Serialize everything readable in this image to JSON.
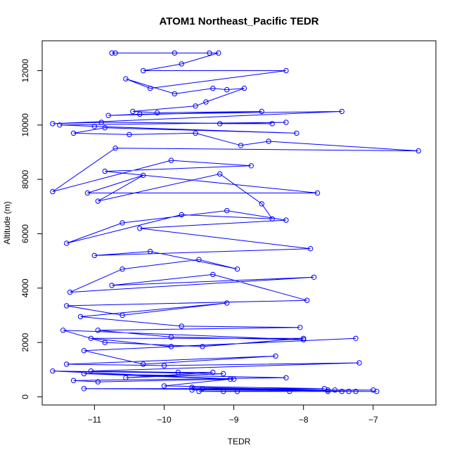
{
  "chart_data": {
    "type": "line",
    "title": "ATOM1 Northeast_Pacific TEDR",
    "xlabel": "TEDR",
    "ylabel": "Altitude (m)",
    "xlim": [
      -11.75,
      -6.1
    ],
    "ylim": [
      -300,
      13100
    ],
    "xticks": [
      -11,
      -10,
      -9,
      -8,
      -7
    ],
    "yticks": [
      0,
      2000,
      4000,
      6000,
      8000,
      10000,
      12000
    ],
    "grid": false,
    "legend": "none",
    "color": "#0000ff",
    "series": [
      {
        "x": [
          -10.75,
          -10.7,
          -9.85,
          -9.35,
          -9.22,
          -9.75,
          -10.3,
          -8.25,
          -10.2,
          -10.55,
          -9.85,
          -9.3,
          -9.1,
          -8.85,
          -9.4,
          -9.55,
          -10.45,
          -10.1,
          -8.6,
          -10.8,
          -10.35,
          -7.45,
          -11.6,
          -10.9,
          -8.45,
          -9.2,
          -8.25,
          -11.5,
          -11.0,
          -8.1,
          -10.85,
          -11.3,
          -10.5,
          -9.55,
          -8.9,
          -8.5,
          -6.35,
          -10.7,
          -11.6,
          -9.9,
          -8.75,
          -10.85,
          -7.8,
          -11.1,
          -10.3,
          -10.95,
          -9.2,
          -8.6,
          -8.45,
          -9.75,
          -11.4,
          -10.6,
          -9.1,
          -8.25,
          -10.35,
          -7.9,
          -11.0,
          -10.2,
          -8.95,
          -9.5,
          -10.6,
          -11.35,
          -7.85,
          -10.75,
          -9.3,
          -7.95,
          -11.4,
          -10.6,
          -9.1,
          -11.2,
          -9.75,
          -8.05,
          -10.95,
          -9.9,
          -8.0,
          -11.45,
          -10.85,
          -9.45,
          -8.0,
          -11.05,
          -9.9,
          -7.25,
          -11.15,
          -10.3,
          -8.4,
          -11.4,
          -10.0,
          -7.2,
          -11.05,
          -9.8,
          -9.3,
          -10.55,
          -9.15,
          -11.6,
          -9.0,
          -11.15,
          -8.25,
          -11.3,
          -10.95,
          -9.05,
          -10.0,
          -7.7,
          -11.15,
          -7.65,
          -9.6,
          -7.35,
          -9.45,
          -7.55,
          -9.6,
          -7.0,
          -9.5,
          -7.65,
          -9.15,
          -7.25,
          -8.95,
          -7.45,
          -8.2,
          -6.95
        ],
        "y": [
          12650,
          12650,
          12650,
          12650,
          12650,
          12250,
          12000,
          12000,
          11350,
          11700,
          11150,
          11350,
          11300,
          11350,
          10850,
          10700,
          10500,
          10450,
          10500,
          10350,
          10400,
          10500,
          10050,
          10100,
          10050,
          10050,
          10100,
          10000,
          9950,
          9700,
          9900,
          9700,
          9650,
          9700,
          9250,
          9400,
          9050,
          9150,
          7550,
          8700,
          8500,
          8300,
          7500,
          7500,
          8150,
          7200,
          8200,
          7100,
          6550,
          6700,
          5650,
          6400,
          6850,
          6500,
          6200,
          5450,
          5200,
          5350,
          4700,
          5050,
          4700,
          3850,
          4400,
          4100,
          4500,
          3550,
          3350,
          3000,
          3450,
          2950,
          2600,
          2550,
          2450,
          2200,
          2100,
          2450,
          2000,
          1850,
          2150,
          2150,
          1850,
          2150,
          1700,
          1200,
          1500,
          1200,
          1150,
          1250,
          950,
          900,
          900,
          700,
          850,
          950,
          650,
          850,
          700,
          600,
          550,
          650,
          400,
          300,
          300,
          250,
          350,
          200,
          300,
          250,
          250,
          250,
          200,
          200,
          200,
          200,
          200,
          200,
          200,
          200
        ]
      }
    ]
  }
}
